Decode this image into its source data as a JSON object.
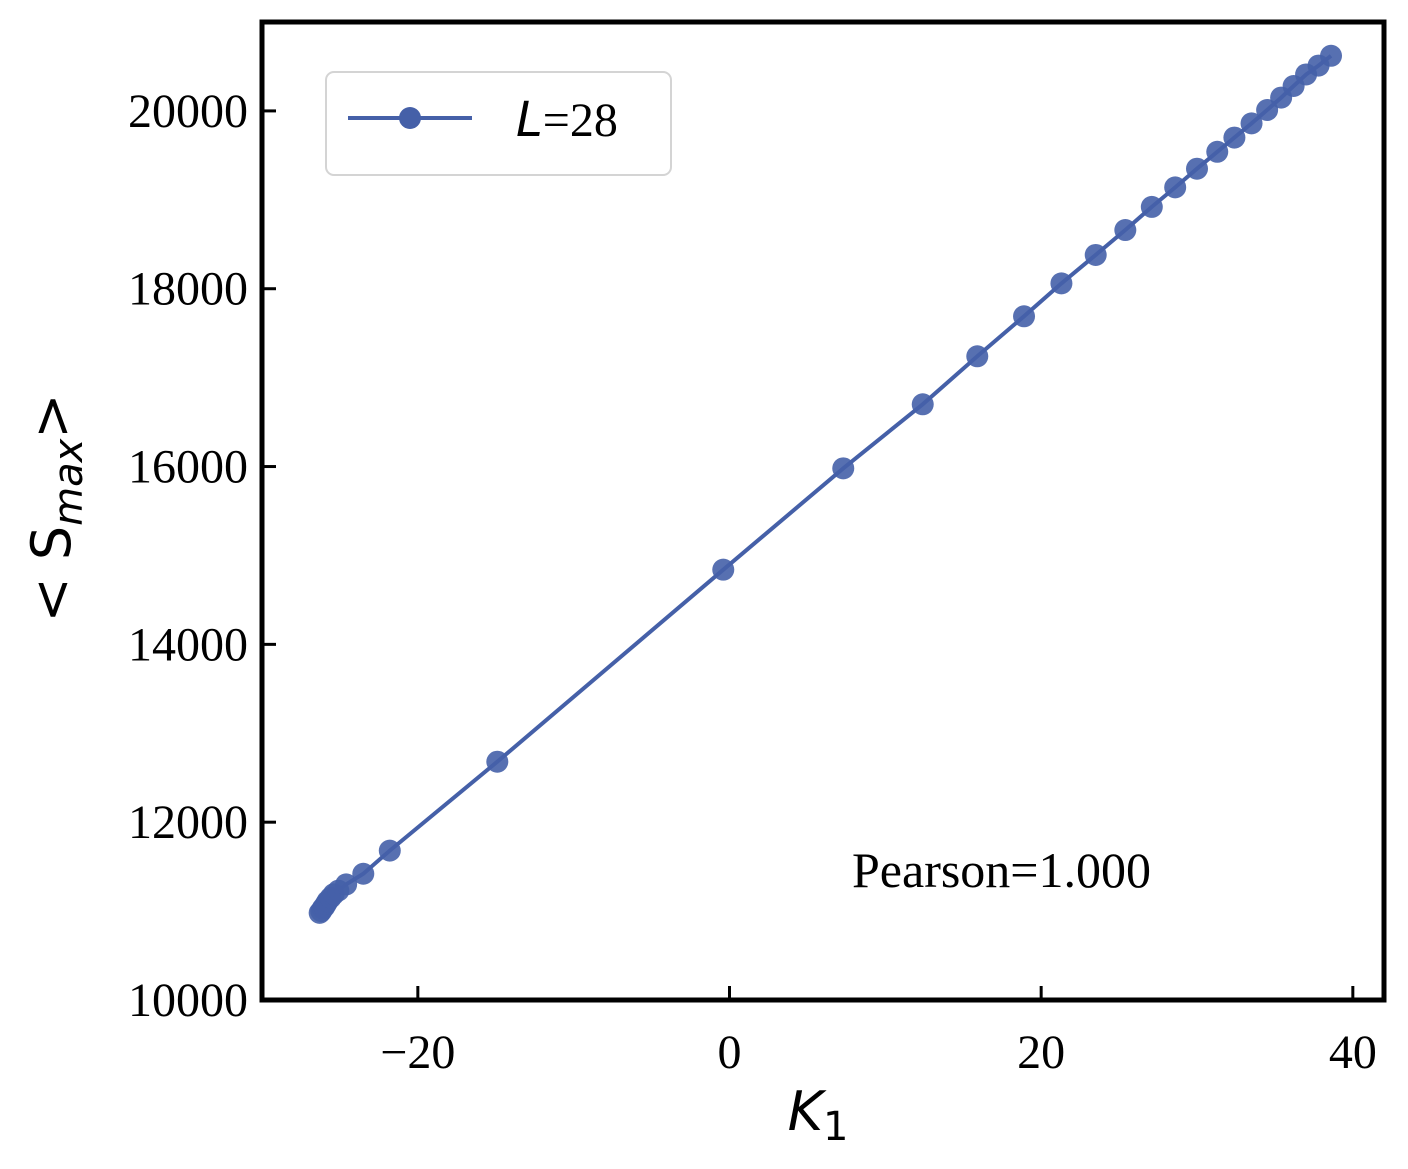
{
  "chart_data": {
    "type": "line",
    "xlabel": "K",
    "xlabel_sub": "1",
    "ylabel_prefix": "< S",
    "ylabel_sub": "max",
    "ylabel_suffix": ">",
    "xlim": [
      -30,
      42
    ],
    "ylim": [
      10000,
      21000
    ],
    "xticks": [
      -20,
      0,
      20,
      40
    ],
    "xtick_labels": [
      "−20",
      "0",
      "20",
      "40"
    ],
    "yticks": [
      10000,
      12000,
      14000,
      16000,
      18000,
      20000
    ],
    "ytick_labels": [
      "10000",
      "12000",
      "14000",
      "16000",
      "18000",
      "20000"
    ],
    "grid": false,
    "legend_position": "top-left",
    "series": [
      {
        "name": "L=28",
        "name_italic": "L",
        "name_rest": "=28",
        "color": "#4560a8",
        "marker": "circle",
        "x": [
          -26.3,
          -26.2,
          -26.1,
          -26.0,
          -25.9,
          -25.8,
          -25.6,
          -25.4,
          -25.1,
          -24.6,
          -23.5,
          -21.8,
          -14.9,
          -0.4,
          7.3,
          12.4,
          15.9,
          18.9,
          21.3,
          23.5,
          25.4,
          27.1,
          28.6,
          30.0,
          31.3,
          32.4,
          33.5,
          34.5,
          35.4,
          36.2,
          37.0,
          37.8,
          38.6
        ],
        "y": [
          10980,
          11000,
          11030,
          11050,
          11080,
          11110,
          11150,
          11190,
          11230,
          11300,
          11420,
          11680,
          12680,
          14840,
          15980,
          16700,
          17240,
          17690,
          18060,
          18380,
          18660,
          18920,
          19140,
          19350,
          19540,
          19700,
          19860,
          20010,
          20150,
          20280,
          20410,
          20510,
          20620
        ]
      }
    ],
    "annotations": [
      "Pearson=1.000"
    ]
  }
}
